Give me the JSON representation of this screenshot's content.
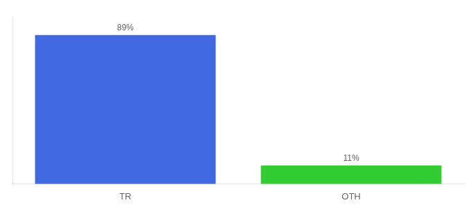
{
  "chart_data": {
    "type": "bar",
    "categories": [
      "TR",
      "OTH"
    ],
    "values": [
      89,
      11
    ],
    "value_labels": [
      "89%",
      "11%"
    ],
    "colors": [
      "#4169e1",
      "#33cc33"
    ],
    "data_labels": true,
    "ylim": [
      0,
      100
    ],
    "tick_labels": "x",
    "grid": false
  }
}
